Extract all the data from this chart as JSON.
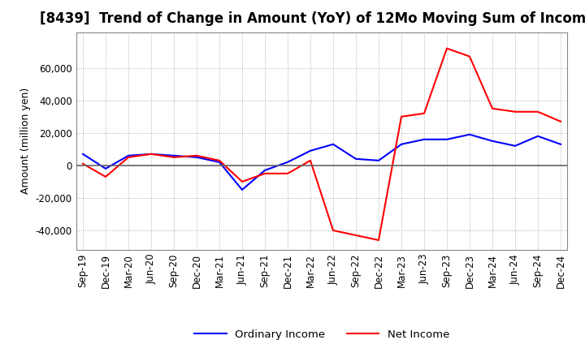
{
  "title": "[8439]  Trend of Change in Amount (YoY) of 12Mo Moving Sum of Incomes",
  "ylabel": "Amount (million yen)",
  "background_color": "#ffffff",
  "grid_color": "#aaaaaa",
  "ylim": [
    -52000,
    82000
  ],
  "yticks": [
    -40000,
    -20000,
    0,
    20000,
    40000,
    60000
  ],
  "x_labels": [
    "Sep-19",
    "Dec-19",
    "Mar-20",
    "Jun-20",
    "Sep-20",
    "Dec-20",
    "Mar-21",
    "Jun-21",
    "Sep-21",
    "Dec-21",
    "Mar-22",
    "Jun-22",
    "Sep-22",
    "Dec-22",
    "Mar-23",
    "Jun-23",
    "Sep-23",
    "Dec-23",
    "Mar-24",
    "Jun-24",
    "Sep-24",
    "Dec-24"
  ],
  "ordinary_income": [
    7000,
    -2000,
    6000,
    7000,
    6000,
    5000,
    2000,
    -15000,
    -3000,
    2000,
    9000,
    13000,
    4000,
    3000,
    13000,
    16000,
    16000,
    19000,
    15000,
    12000,
    18000,
    13000
  ],
  "net_income": [
    1000,
    -7000,
    5000,
    7000,
    5000,
    6000,
    3000,
    -10000,
    -5000,
    -5000,
    3000,
    -40000,
    -43000,
    -46000,
    30000,
    32000,
    72000,
    67000,
    35000,
    33000,
    33000,
    27000
  ],
  "ordinary_color": "#0000ff",
  "net_color": "#ff0000",
  "legend_labels": [
    "Ordinary Income",
    "Net Income"
  ],
  "title_fontsize": 12,
  "axis_fontsize": 9,
  "tick_fontsize": 8.5,
  "line_width": 1.5
}
